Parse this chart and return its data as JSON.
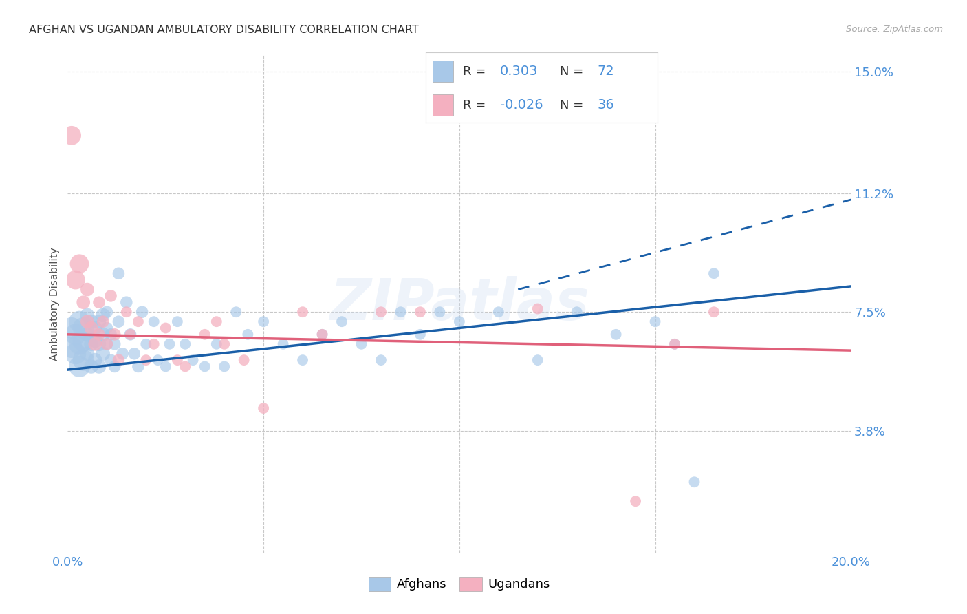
{
  "title": "AFGHAN VS UGANDAN AMBULATORY DISABILITY CORRELATION CHART",
  "source": "Source: ZipAtlas.com",
  "ylabel": "Ambulatory Disability",
  "watermark": "ZIPatlas",
  "xlim": [
    0.0,
    0.2
  ],
  "ylim": [
    0.0,
    0.155
  ],
  "ytick_positions": [
    0.038,
    0.075,
    0.112,
    0.15
  ],
  "ytick_labels": [
    "3.8%",
    "7.5%",
    "11.2%",
    "15.0%"
  ],
  "xtick_positions": [
    0.0,
    0.2
  ],
  "xtick_labels": [
    "0.0%",
    "20.0%"
  ],
  "blue_color": "#a8c8e8",
  "pink_color": "#f4b0c0",
  "blue_line_color": "#1a5fa8",
  "pink_line_color": "#e0607a",
  "grid_color": "#c8c8c8",
  "bg_color": "#ffffff",
  "title_color": "#333333",
  "axis_label_color": "#555555",
  "tick_color": "#4a90d9",
  "legend_R_blue": "0.303",
  "legend_N_blue": "72",
  "legend_R_pink": "-0.026",
  "legend_N_pink": "36",
  "blue_trendline": [
    0.0,
    0.2,
    0.057,
    0.083
  ],
  "blue_dash": [
    0.115,
    0.2,
    0.082,
    0.11
  ],
  "pink_trendline": [
    0.0,
    0.2,
    0.068,
    0.063
  ],
  "afghans_x": [
    0.001,
    0.001,
    0.002,
    0.002,
    0.003,
    0.003,
    0.003,
    0.004,
    0.004,
    0.004,
    0.005,
    0.005,
    0.005,
    0.006,
    0.006,
    0.006,
    0.007,
    0.007,
    0.007,
    0.008,
    0.008,
    0.008,
    0.009,
    0.009,
    0.009,
    0.01,
    0.01,
    0.01,
    0.011,
    0.011,
    0.012,
    0.012,
    0.013,
    0.013,
    0.014,
    0.015,
    0.016,
    0.017,
    0.018,
    0.019,
    0.02,
    0.022,
    0.023,
    0.025,
    0.026,
    0.028,
    0.03,
    0.032,
    0.035,
    0.038,
    0.04,
    0.043,
    0.046,
    0.05,
    0.055,
    0.06,
    0.065,
    0.07,
    0.075,
    0.08,
    0.085,
    0.09,
    0.095,
    0.1,
    0.11,
    0.12,
    0.13,
    0.14,
    0.15,
    0.155,
    0.16,
    0.165
  ],
  "afghans_y": [
    0.064,
    0.07,
    0.062,
    0.068,
    0.058,
    0.065,
    0.072,
    0.06,
    0.066,
    0.07,
    0.062,
    0.068,
    0.074,
    0.058,
    0.065,
    0.072,
    0.06,
    0.066,
    0.07,
    0.058,
    0.065,
    0.072,
    0.062,
    0.068,
    0.074,
    0.065,
    0.07,
    0.075,
    0.06,
    0.068,
    0.065,
    0.058,
    0.087,
    0.072,
    0.062,
    0.078,
    0.068,
    0.062,
    0.058,
    0.075,
    0.065,
    0.072,
    0.06,
    0.058,
    0.065,
    0.072,
    0.065,
    0.06,
    0.058,
    0.065,
    0.058,
    0.075,
    0.068,
    0.072,
    0.065,
    0.06,
    0.068,
    0.072,
    0.065,
    0.06,
    0.075,
    0.068,
    0.075,
    0.072,
    0.075,
    0.06,
    0.075,
    0.068,
    0.072,
    0.065,
    0.022,
    0.087
  ],
  "ugandans_x": [
    0.001,
    0.002,
    0.003,
    0.004,
    0.005,
    0.005,
    0.006,
    0.007,
    0.008,
    0.008,
    0.009,
    0.01,
    0.011,
    0.012,
    0.013,
    0.015,
    0.016,
    0.018,
    0.02,
    0.022,
    0.025,
    0.028,
    0.03,
    0.035,
    0.038,
    0.04,
    0.045,
    0.05,
    0.06,
    0.065,
    0.08,
    0.09,
    0.12,
    0.145,
    0.155,
    0.165
  ],
  "ugandans_y": [
    0.13,
    0.085,
    0.09,
    0.078,
    0.072,
    0.082,
    0.07,
    0.065,
    0.078,
    0.068,
    0.072,
    0.065,
    0.08,
    0.068,
    0.06,
    0.075,
    0.068,
    0.072,
    0.06,
    0.065,
    0.07,
    0.06,
    0.058,
    0.068,
    0.072,
    0.065,
    0.06,
    0.045,
    0.075,
    0.068,
    0.075,
    0.075,
    0.076,
    0.016,
    0.065,
    0.075
  ]
}
